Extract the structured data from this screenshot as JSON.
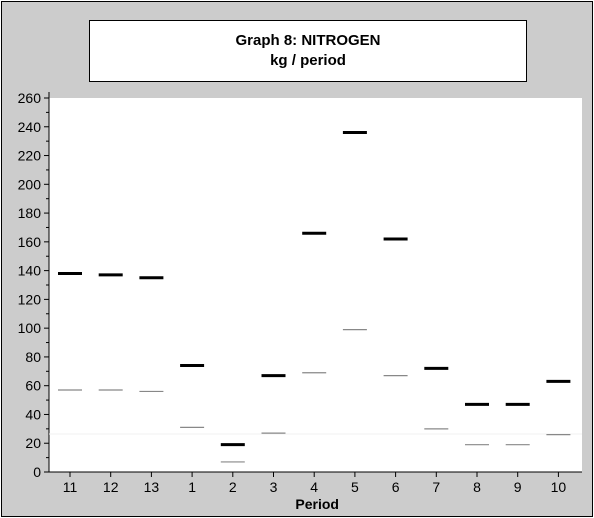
{
  "chart_data": {
    "type": "scatter",
    "title": "Graph 8: NITROGEN",
    "subtitle": "kg / period",
    "xlabel": "Period",
    "ylabel": "",
    "ylim": [
      0,
      260
    ],
    "y_ticks": [
      0,
      20,
      40,
      60,
      80,
      100,
      120,
      140,
      160,
      180,
      200,
      220,
      240,
      260
    ],
    "categories": [
      "11",
      "12",
      "13",
      "1",
      "2",
      "3",
      "4",
      "5",
      "6",
      "7",
      "8",
      "9",
      "10"
    ],
    "grid": false,
    "legend": "none",
    "series": [
      {
        "color": "#000000",
        "marker": "thick-dash",
        "values": [
          138,
          137,
          135,
          74,
          19,
          67,
          166,
          236,
          162,
          72,
          47,
          47,
          63
        ]
      },
      {
        "color": "#888888",
        "marker": "thin-dash",
        "values": [
          57,
          57,
          56,
          31,
          7,
          27,
          69,
          99,
          67,
          30,
          19,
          19,
          26
        ]
      }
    ],
    "colors": {
      "background": "#cccccc",
      "plot_area": "#ffffff"
    }
  }
}
